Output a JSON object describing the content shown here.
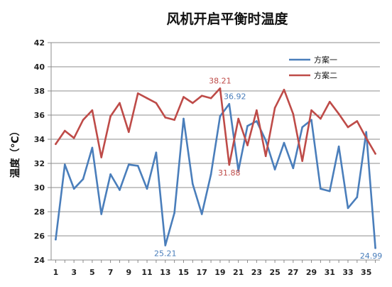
{
  "chart_data": {
    "type": "line",
    "title": "风机开启平衡时温度",
    "ylabel": "温度（℃）",
    "xlabel": "",
    "ylim": [
      24,
      42
    ],
    "yticks": [
      24,
      26,
      28,
      30,
      32,
      34,
      36,
      38,
      40,
      42
    ],
    "xlim": [
      0.5,
      36.5
    ],
    "xticks": [
      1,
      3,
      5,
      7,
      9,
      11,
      13,
      15,
      17,
      19,
      21,
      23,
      25,
      27,
      29,
      31,
      33,
      35
    ],
    "grid": "horizontal",
    "legend_position": "top-right",
    "x": [
      1,
      2,
      3,
      4,
      5,
      6,
      7,
      8,
      9,
      10,
      11,
      12,
      13,
      14,
      15,
      16,
      17,
      18,
      19,
      20,
      21,
      22,
      23,
      24,
      25,
      26,
      27,
      28,
      29,
      30,
      31,
      32,
      33,
      34,
      35,
      36
    ],
    "series": [
      {
        "name": "方案一",
        "color": "#4a7ebb",
        "values": [
          25.7,
          31.9,
          29.9,
          30.7,
          33.3,
          27.8,
          31.1,
          29.8,
          31.9,
          31.8,
          29.9,
          32.9,
          25.21,
          27.9,
          35.7,
          30.3,
          27.8,
          31.1,
          35.9,
          36.92,
          31.4,
          35.1,
          35.5,
          33.9,
          31.5,
          33.7,
          31.6,
          35.0,
          35.6,
          29.9,
          29.7,
          33.4,
          28.3,
          29.2,
          34.6,
          24.99
        ]
      },
      {
        "name": "方案二",
        "color": "#be4b48",
        "values": [
          33.6,
          34.7,
          34.1,
          35.6,
          36.4,
          32.5,
          35.9,
          37.0,
          34.6,
          37.8,
          37.4,
          37.0,
          35.8,
          35.6,
          37.5,
          37.0,
          37.6,
          37.4,
          38.21,
          31.88,
          35.7,
          33.5,
          36.4,
          32.6,
          36.6,
          38.1,
          36.1,
          32.2,
          36.4,
          35.7,
          37.1,
          36.1,
          35.0,
          35.5,
          34.1,
          32.8
        ]
      }
    ],
    "annotations": [
      {
        "text": "38.21",
        "x": 19,
        "y": 38.21,
        "series": "方案二",
        "color": "#be4b48",
        "placement": "above"
      },
      {
        "text": "36.92",
        "x": 20,
        "y": 36.92,
        "series": "方案一",
        "color": "#4a7ebb",
        "placement": "above"
      },
      {
        "text": "31.88",
        "x": 20,
        "y": 31.88,
        "series": "方案二",
        "color": "#be4b48",
        "placement": "below"
      },
      {
        "text": "25.21",
        "x": 13,
        "y": 25.21,
        "series": "方案一",
        "color": "#4a7ebb",
        "placement": "below"
      },
      {
        "text": "24.99",
        "x": 36,
        "y": 24.99,
        "series": "方案一",
        "color": "#4a7ebb",
        "placement": "below-left"
      }
    ]
  }
}
